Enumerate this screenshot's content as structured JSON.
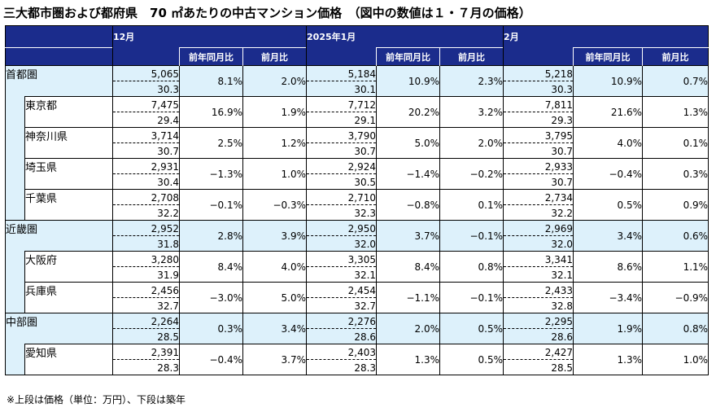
{
  "title": "三大都市圏および都府県　70 ㎡あたりの中古マンション価格　（図中の数値は１・７月の価格）",
  "note": "※上段は価格（単位：万円）、下段は築年",
  "periods": [
    {
      "label": "12月"
    },
    {
      "label": "2025年1月"
    },
    {
      "label": "2月"
    }
  ],
  "col_headers": {
    "yoy": "前年同月比",
    "mom": "前月比"
  },
  "rows": [
    {
      "name": "首都圏",
      "level": "region",
      "cells": [
        {
          "price": "5,065",
          "age": "30.3",
          "yoy": "8.1%",
          "mom": "2.0%"
        },
        {
          "price": "5,184",
          "age": "30.1",
          "yoy": "10.9%",
          "mom": "2.3%"
        },
        {
          "price": "5,218",
          "age": "30.3",
          "yoy": "10.9%",
          "mom": "0.7%"
        }
      ]
    },
    {
      "name": "東京都",
      "level": "pref",
      "cells": [
        {
          "price": "7,475",
          "age": "29.4",
          "yoy": "16.9%",
          "mom": "1.9%"
        },
        {
          "price": "7,712",
          "age": "29.1",
          "yoy": "20.2%",
          "mom": "3.2%"
        },
        {
          "price": "7,811",
          "age": "29.3",
          "yoy": "21.6%",
          "mom": "1.3%"
        }
      ]
    },
    {
      "name": "神奈川県",
      "level": "pref",
      "cells": [
        {
          "price": "3,714",
          "age": "30.7",
          "yoy": "2.5%",
          "mom": "1.2%"
        },
        {
          "price": "3,790",
          "age": "30.7",
          "yoy": "5.0%",
          "mom": "2.0%"
        },
        {
          "price": "3,795",
          "age": "30.7",
          "yoy": "4.0%",
          "mom": "0.1%"
        }
      ]
    },
    {
      "name": "埼玉県",
      "level": "pref",
      "cells": [
        {
          "price": "2,931",
          "age": "30.4",
          "yoy": "−1.3%",
          "mom": "1.0%"
        },
        {
          "price": "2,924",
          "age": "30.5",
          "yoy": "−1.4%",
          "mom": "−0.2%"
        },
        {
          "price": "2,933",
          "age": "30.7",
          "yoy": "−0.4%",
          "mom": "0.3%"
        }
      ]
    },
    {
      "name": "千葉県",
      "level": "pref",
      "cells": [
        {
          "price": "2,708",
          "age": "32.2",
          "yoy": "−0.1%",
          "mom": "−0.3%"
        },
        {
          "price": "2,710",
          "age": "32.3",
          "yoy": "−0.8%",
          "mom": "0.1%"
        },
        {
          "price": "2,734",
          "age": "32.2",
          "yoy": "0.5%",
          "mom": "0.9%"
        }
      ]
    },
    {
      "name": "近畿圏",
      "level": "region",
      "cells": [
        {
          "price": "2,952",
          "age": "31.8",
          "yoy": "2.8%",
          "mom": "3.9%"
        },
        {
          "price": "2,950",
          "age": "32.0",
          "yoy": "3.7%",
          "mom": "−0.1%"
        },
        {
          "price": "2,969",
          "age": "32.0",
          "yoy": "3.4%",
          "mom": "0.6%"
        }
      ]
    },
    {
      "name": "大阪府",
      "level": "pref",
      "cells": [
        {
          "price": "3,280",
          "age": "31.9",
          "yoy": "8.4%",
          "mom": "4.0%"
        },
        {
          "price": "3,305",
          "age": "32.1",
          "yoy": "8.4%",
          "mom": "0.8%"
        },
        {
          "price": "3,341",
          "age": "32.1",
          "yoy": "8.6%",
          "mom": "1.1%"
        }
      ]
    },
    {
      "name": "兵庫県",
      "level": "pref",
      "cells": [
        {
          "price": "2,456",
          "age": "32.7",
          "yoy": "−3.0%",
          "mom": "5.0%"
        },
        {
          "price": "2,454",
          "age": "32.7",
          "yoy": "−1.1%",
          "mom": "−0.1%"
        },
        {
          "price": "2,433",
          "age": "32.8",
          "yoy": "−3.4%",
          "mom": "−0.9%"
        }
      ]
    },
    {
      "name": "中部圏",
      "level": "region",
      "cells": [
        {
          "price": "2,264",
          "age": "28.5",
          "yoy": "0.3%",
          "mom": "3.4%"
        },
        {
          "price": "2,276",
          "age": "28.6",
          "yoy": "2.0%",
          "mom": "0.5%"
        },
        {
          "price": "2,295",
          "age": "28.6",
          "yoy": "1.9%",
          "mom": "0.8%"
        }
      ]
    },
    {
      "name": "愛知県",
      "level": "pref",
      "cells": [
        {
          "price": "2,391",
          "age": "28.3",
          "yoy": "−0.4%",
          "mom": "3.7%"
        },
        {
          "price": "2,403",
          "age": "28.3",
          "yoy": "1.3%",
          "mom": "0.5%"
        },
        {
          "price": "2,427",
          "age": "28.5",
          "yoy": "1.3%",
          "mom": "1.0%"
        }
      ]
    }
  ]
}
